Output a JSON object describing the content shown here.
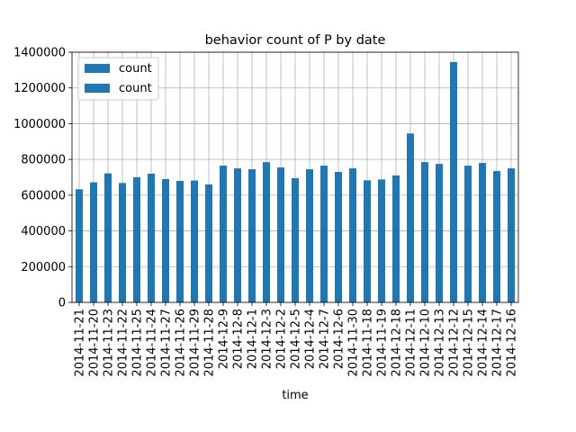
{
  "chart_data": {
    "type": "bar",
    "title": "behavior count of P by date",
    "xlabel": "time",
    "ylabel": "",
    "ylim": [
      0,
      1400000
    ],
    "yticks": [
      0,
      200000,
      400000,
      600000,
      800000,
      1000000,
      1200000,
      1400000
    ],
    "grid": true,
    "legend_position": "upper-left",
    "legend_entries": [
      "count",
      "count"
    ],
    "bar_color": "#1f77b4",
    "categories": [
      "2014-11-21",
      "2014-11-20",
      "2014-11-23",
      "2014-11-22",
      "2014-11-25",
      "2014-11-24",
      "2014-11-27",
      "2014-11-26",
      "2014-11-29",
      "2014-11-28",
      "2014-12-9",
      "2014-12-8",
      "2014-12-1",
      "2014-12-3",
      "2014-12-2",
      "2014-12-5",
      "2014-12-4",
      "2014-12-7",
      "2014-12-6",
      "2014-11-30",
      "2014-11-18",
      "2014-11-19",
      "2014-12-18",
      "2014-12-11",
      "2014-12-10",
      "2014-12-13",
      "2014-12-12",
      "2014-12-15",
      "2014-12-14",
      "2014-12-17",
      "2014-12-16"
    ],
    "series": [
      {
        "name": "count",
        "values": [
          633000,
          672000,
          722000,
          668000,
          700000,
          720000,
          690000,
          680000,
          682000,
          660000,
          765000,
          750000,
          745000,
          785000,
          755000,
          695000,
          745000,
          765000,
          730000,
          750000,
          683000,
          688000,
          710000,
          945000,
          785000,
          775000,
          1345000,
          765000,
          780000,
          735000,
          750000
        ]
      }
    ]
  }
}
